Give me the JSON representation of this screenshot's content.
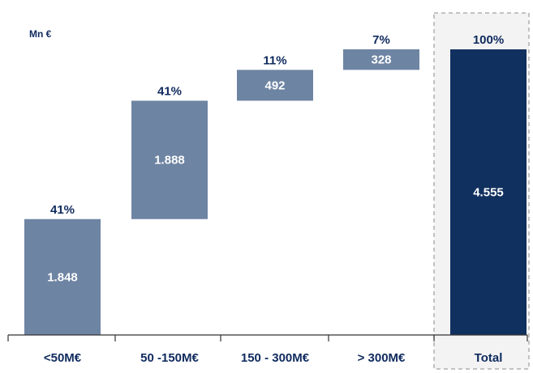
{
  "chart_data": {
    "type": "bar",
    "subtype": "waterfall",
    "unit_label": "Mn €",
    "categories": [
      "<50M€",
      "50 -150M€",
      "150 - 300M€",
      "> 300M€",
      "Total"
    ],
    "values": [
      1848,
      1888,
      492,
      328,
      4555
    ],
    "value_labels": [
      "1.848",
      "1.888",
      "492",
      "328",
      "4.555"
    ],
    "percent_labels": [
      "41%",
      "41%",
      "11%",
      "7%",
      "100%"
    ],
    "ylim": [
      0,
      4555
    ],
    "colors": {
      "segment": "#6e84a3",
      "total": "#10305f",
      "text_dark": "#0f2a5e",
      "axis": "#333333",
      "highlight_border": "#b0b0b0",
      "highlight_fill": "#f3f3f3"
    }
  }
}
